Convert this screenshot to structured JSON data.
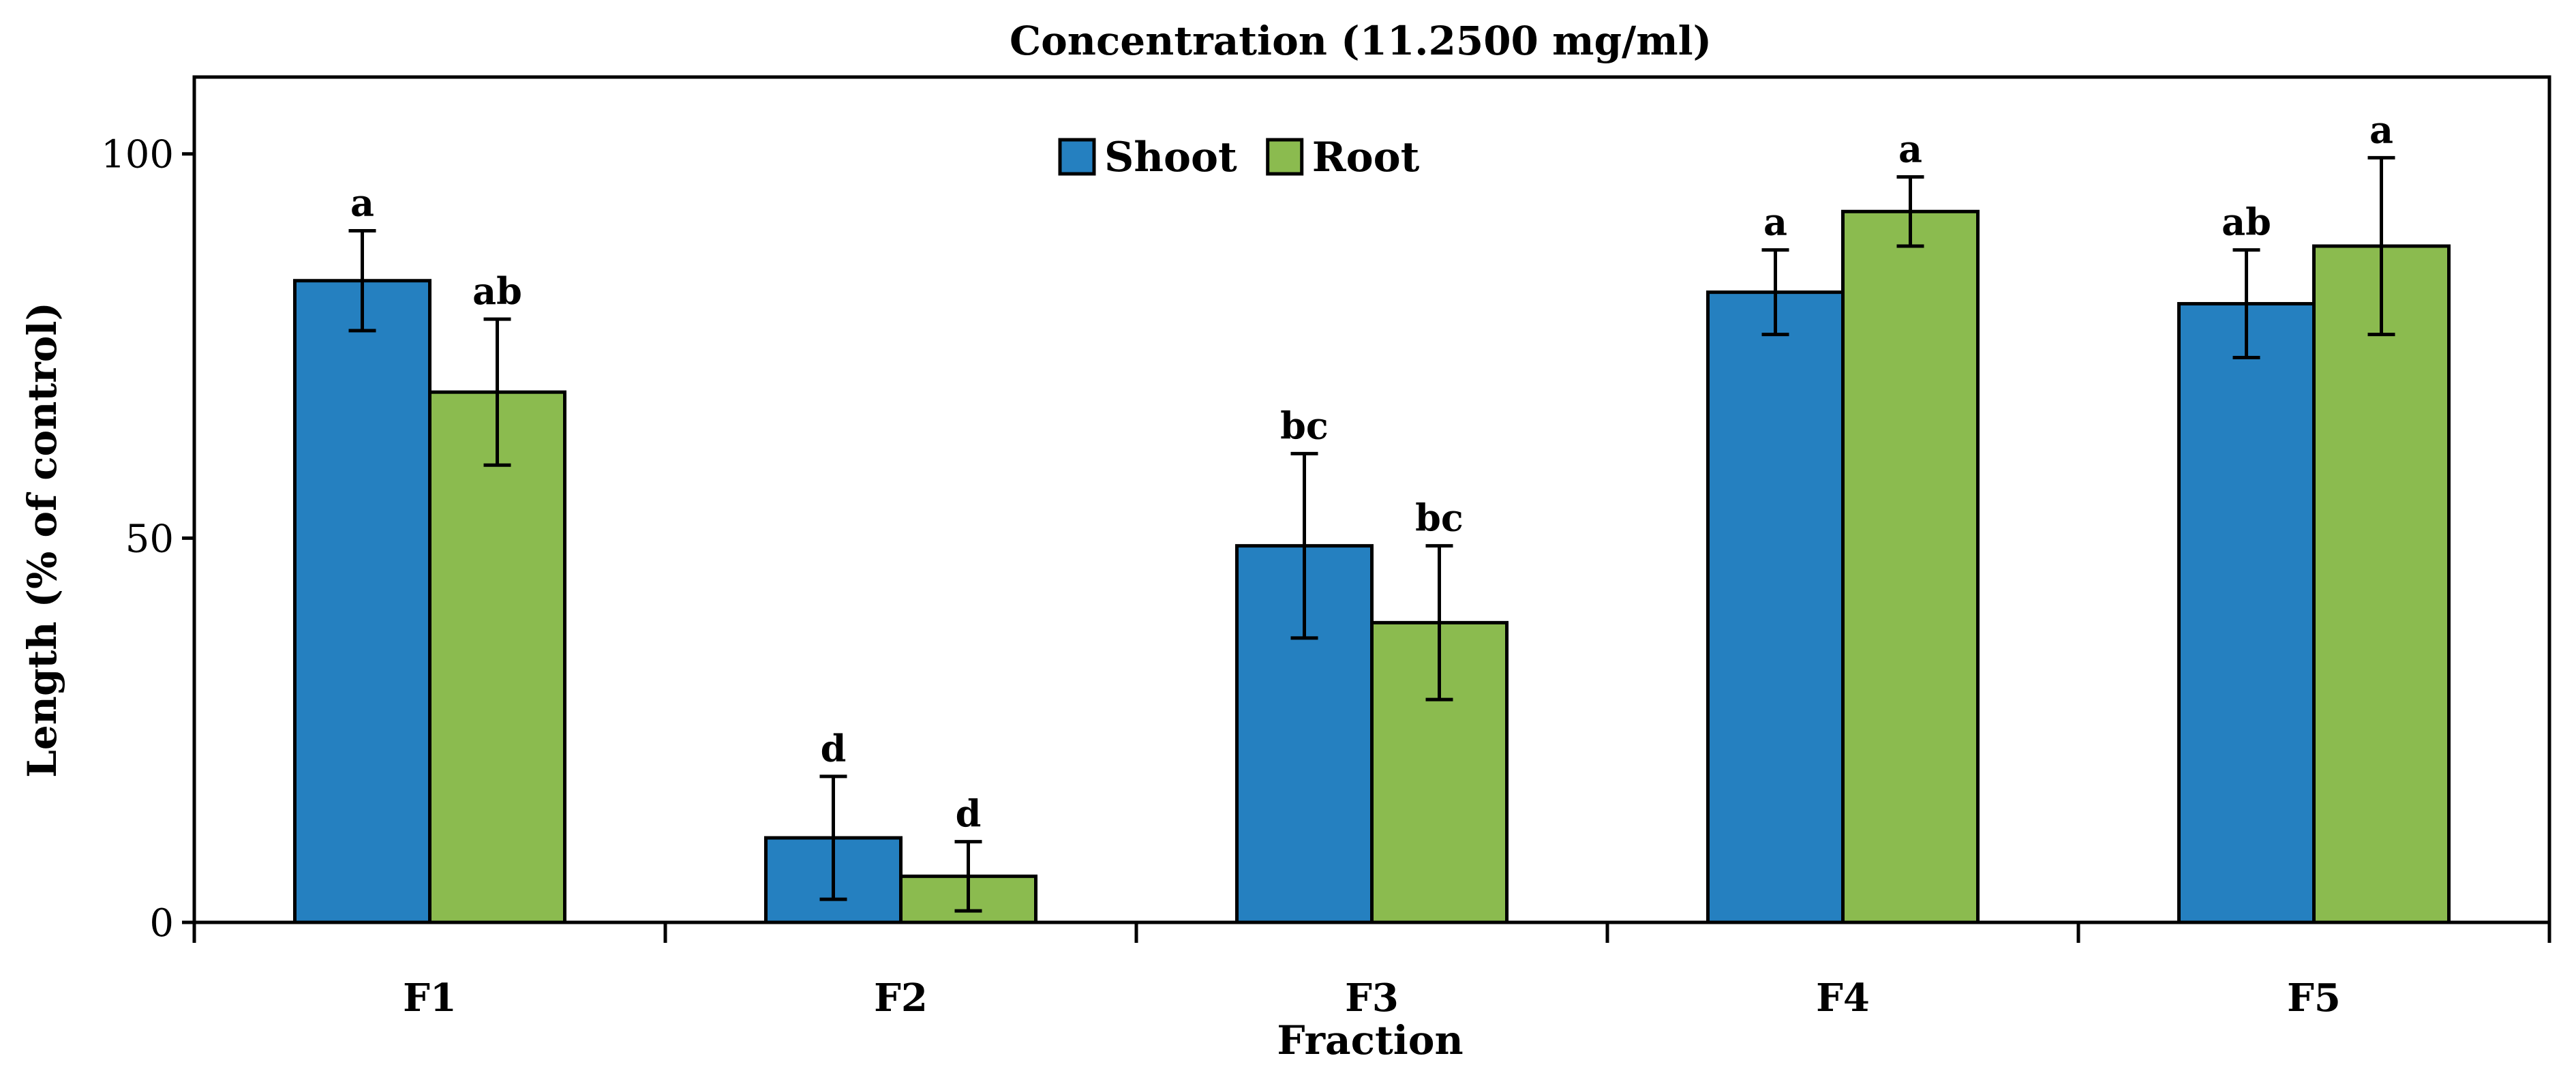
{
  "chart_data": {
    "type": "bar",
    "title": "Concentration (11.2500 mg/ml)",
    "xlabel": "Fraction",
    "ylabel": "Length (% of control)",
    "ylim": [
      0,
      110
    ],
    "yticks": [
      0,
      50,
      100
    ],
    "categories": [
      "F1",
      "F2",
      "F3",
      "F4",
      "F5"
    ],
    "legend_position": "top-center",
    "series": [
      {
        "name": "Shoot",
        "color": "#2580C0",
        "values": [
          83.5,
          11,
          49,
          82,
          80.5
        ],
        "errors": [
          6.5,
          8,
          12,
          5.5,
          7
        ],
        "labels": [
          "a",
          "d",
          "bc",
          "a",
          "ab"
        ]
      },
      {
        "name": "Root",
        "color": "#8BBB4F",
        "values": [
          69,
          6,
          39,
          92.5,
          88
        ],
        "errors": [
          9.5,
          4.5,
          10,
          4.5,
          11.5
        ],
        "labels": [
          "ab",
          "d",
          "bc",
          "a",
          "a"
        ]
      }
    ]
  }
}
